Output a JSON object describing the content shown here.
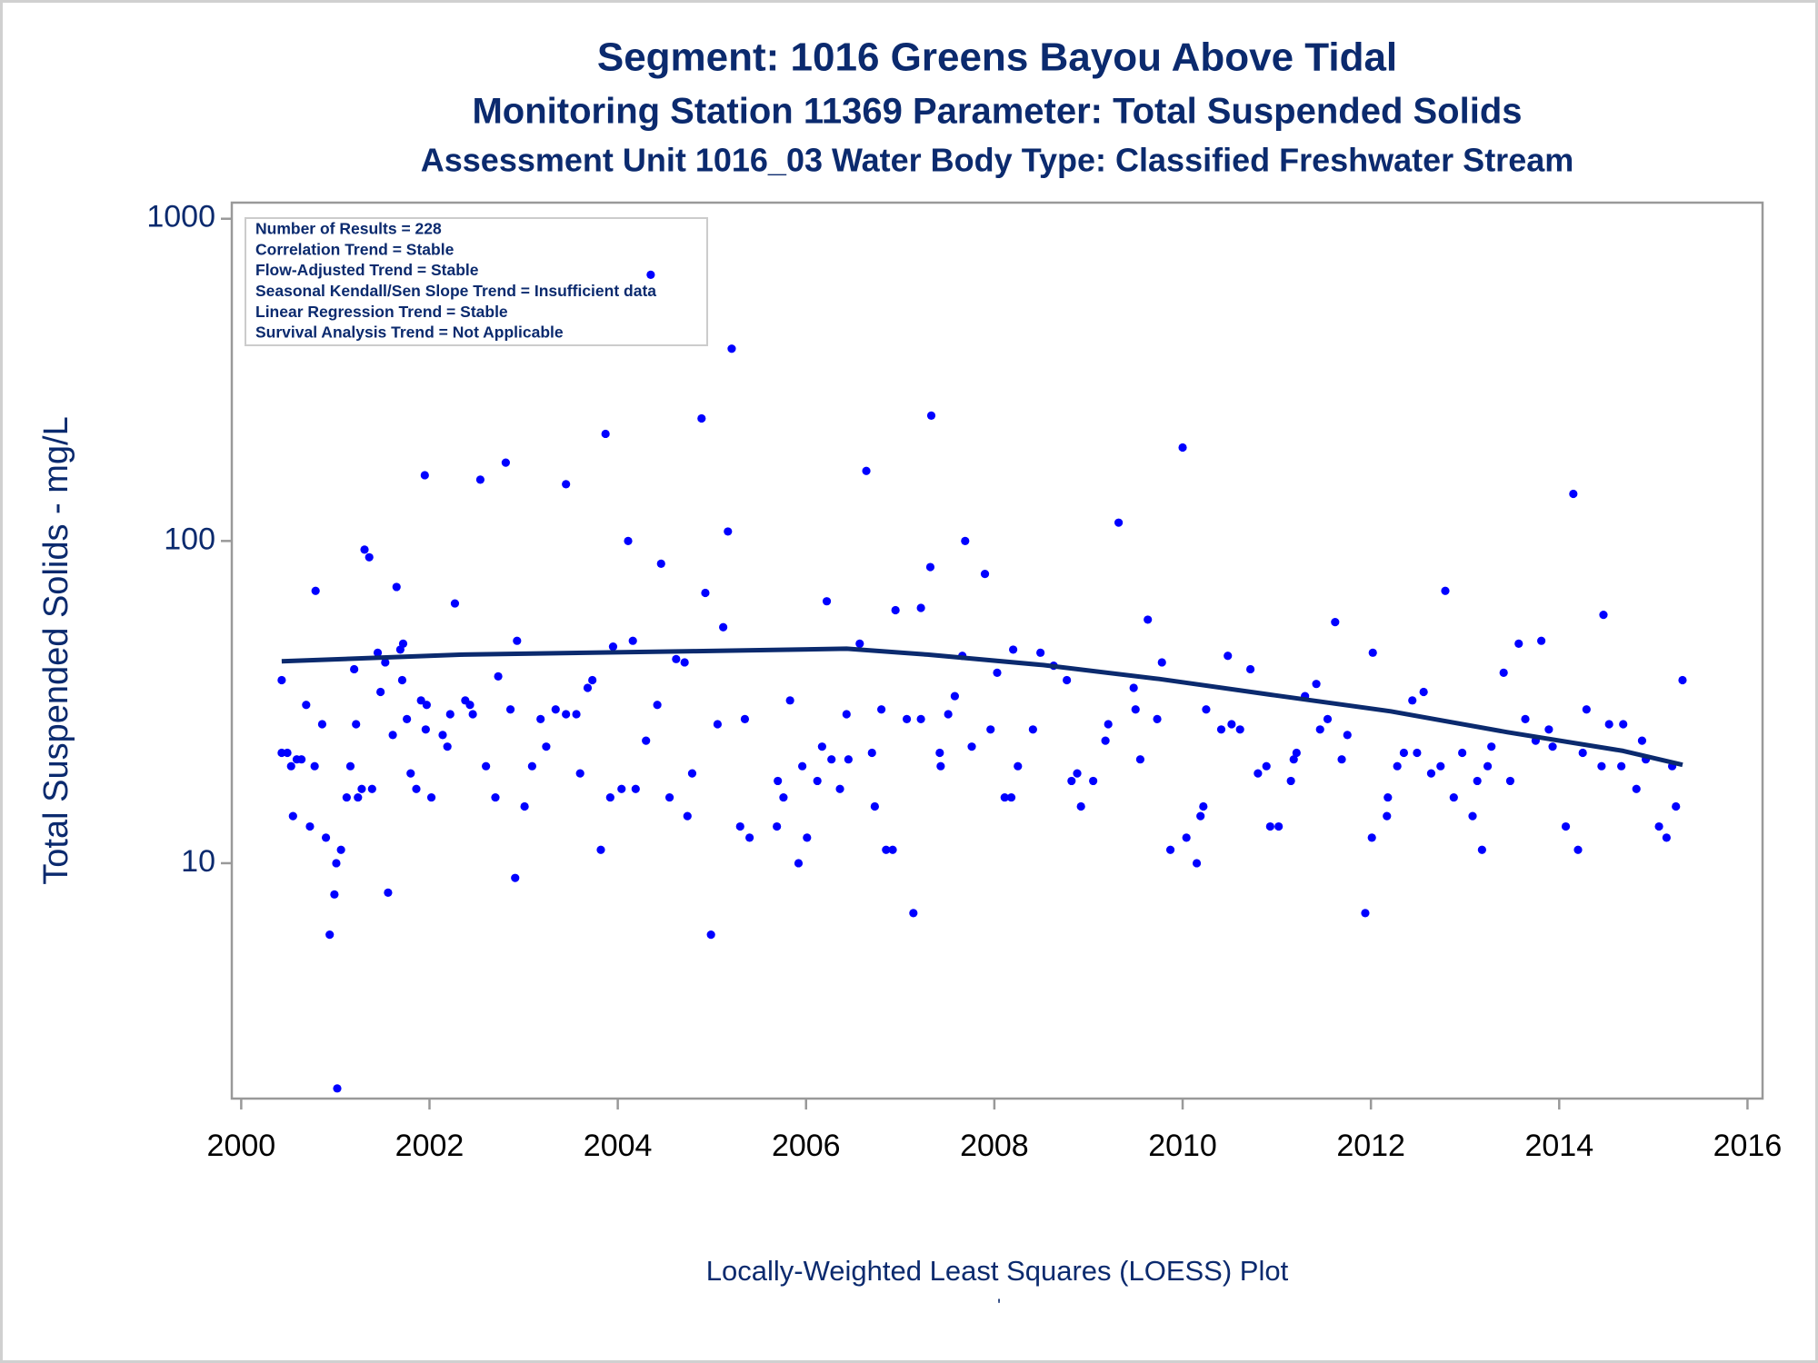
{
  "chart_data": {
    "type": "scatter",
    "title": "Segment: 1016  Greens Bayou Above Tidal",
    "subtitle": "Monitoring Station 11369 Parameter: Total Suspended Solids",
    "subtitle2": "Assessment Unit 1016_03   Water Body Type: Classified Freshwater Stream",
    "y_label": "Total Suspended Solids - mg/L",
    "footnote": "Locally-Weighted Least Squares (LOESS) Plot",
    "footnote2": "'",
    "annotations": [
      "Number of Results = 228",
      "Correlation Trend = Stable",
      "Flow-Adjusted Trend = Stable",
      "Seasonal Kendall/Sen Slope Trend = Insufficient data",
      "Linear Regression Trend = Stable",
      "Survival Analysis Trend = Not Applicable"
    ],
    "xlim": [
      1999.9,
      2016.16
    ],
    "xticks": [
      2000,
      2002,
      2004,
      2006,
      2008,
      2010,
      2012,
      2014,
      2016
    ],
    "ylim": [
      1.86,
      1122
    ],
    "yticks": [
      10,
      100,
      1000
    ],
    "ylog": true,
    "series": [
      {
        "type": "scatter",
        "color": "#0000ff",
        "x": [
          2000.43,
          2000.43,
          2000.49,
          2000.53,
          2000.55,
          2000.59,
          2000.64,
          2000.69,
          2000.73,
          2000.78,
          2000.79,
          2000.86,
          2000.9,
          2000.94,
          2000.99,
          2001.01,
          2001.06,
          2001.02,
          2001.12,
          2001.16,
          2001.2,
          2001.22,
          2001.24,
          2001.28,
          2001.31,
          2001.36,
          2001.39,
          2001.45,
          2001.48,
          2001.53,
          2001.56,
          2001.61,
          2001.65,
          2001.69,
          2001.72,
          2001.71,
          2001.76,
          2001.8,
          2001.86,
          2001.91,
          2001.95,
          2001.96,
          2001.97,
          2002.02,
          2002.14,
          2002.19,
          2002.22,
          2002.27,
          2002.38,
          2002.43,
          2002.46,
          2002.54,
          2002.6,
          2002.7,
          2002.73,
          2002.81,
          2002.86,
          2002.91,
          2002.93,
          2003.01,
          2003.09,
          2003.18,
          2003.24,
          2003.34,
          2003.45,
          2003.45,
          2003.56,
          2003.6,
          2003.68,
          2003.73,
          2003.82,
          2003.87,
          2003.92,
          2003.95,
          2004.04,
          2004.11,
          2004.16,
          2004.19,
          2004.3,
          2004.35,
          2004.42,
          2004.46,
          2004.55,
          2004.62,
          2004.71,
          2004.74,
          2004.79,
          2004.89,
          2004.93,
          2004.99,
          2005.06,
          2005.12,
          2005.17,
          2005.21,
          2005.3,
          2005.35,
          2005.4,
          2005.69,
          2005.7,
          2005.76,
          2005.83,
          2005.92,
          2005.96,
          2006.01,
          2006.12,
          2006.17,
          2006.22,
          2006.27,
          2006.36,
          2006.43,
          2006.45,
          2006.57,
          2006.64,
          2006.7,
          2006.73,
          2006.8,
          2006.85,
          2006.92,
          2006.95,
          2007.07,
          2007.14,
          2007.22,
          2007.22,
          2007.32,
          2007.33,
          2007.42,
          2007.43,
          2007.51,
          2007.58,
          2007.66,
          2007.69,
          2007.76,
          2007.9,
          2007.96,
          2008.03,
          2008.11,
          2008.18,
          2008.2,
          2008.25,
          2008.41,
          2008.49,
          2008.63,
          2008.77,
          2008.82,
          2008.88,
          2008.92,
          2009.05,
          2009.18,
          2009.21,
          2009.32,
          2009.48,
          2009.5,
          2009.55,
          2009.63,
          2009.73,
          2009.78,
          2009.87,
          2010.0,
          2010.04,
          2010.15,
          2010.19,
          2010.22,
          2010.25,
          2010.41,
          2010.48,
          2010.52,
          2010.61,
          2010.72,
          2010.8,
          2010.89,
          2010.93,
          2011.02,
          2011.15,
          2011.18,
          2011.21,
          2011.3,
          2011.42,
          2011.46,
          2011.54,
          2011.62,
          2011.69,
          2011.75,
          2011.94,
          2012.01,
          2012.02,
          2012.17,
          2012.18,
          2012.28,
          2012.35,
          2012.44,
          2012.49,
          2012.56,
          2012.64,
          2012.74,
          2012.79,
          2012.88,
          2012.97,
          2013.08,
          2013.13,
          2013.18,
          2013.24,
          2013.28,
          2013.41,
          2013.48,
          2013.57,
          2013.64,
          2013.75,
          2013.81,
          2013.89,
          2013.93,
          2014.07,
          2014.15,
          2014.2,
          2014.25,
          2014.29,
          2014.45,
          2014.47,
          2014.53,
          2014.66,
          2014.68,
          2014.82,
          2014.88,
          2014.92,
          2015.06,
          2015.14,
          2015.2,
          2015.24,
          2015.31
        ],
        "values": [
          37,
          22,
          22,
          20,
          14,
          21,
          21,
          31,
          13,
          20,
          70,
          27,
          12,
          6,
          8,
          10,
          11,
          2,
          16,
          20,
          40,
          27,
          16,
          17,
          94,
          89,
          17,
          45,
          34,
          42,
          8.1,
          25,
          72,
          46,
          48,
          37,
          28,
          19,
          17,
          32,
          160,
          26,
          31,
          16,
          25,
          23,
          29,
          64,
          32,
          31,
          29,
          155,
          20,
          16,
          38,
          175,
          30,
          9,
          49,
          15,
          20,
          28,
          23,
          30,
          150,
          29,
          29,
          19,
          35,
          37,
          11,
          215,
          16,
          47,
          17,
          100,
          49,
          17,
          24,
          670,
          31,
          85,
          16,
          43,
          42,
          14,
          19,
          240,
          69,
          6,
          27,
          54,
          107,
          395,
          13,
          28,
          12,
          13,
          18,
          16,
          32,
          10,
          20,
          12,
          18,
          23,
          65,
          21,
          17,
          29,
          21,
          48,
          165,
          22,
          15,
          30,
          11,
          11,
          61,
          28,
          7,
          62,
          28,
          83,
          245,
          22,
          20,
          29,
          33,
          44,
          100,
          23,
          79,
          26,
          39,
          16,
          16,
          46,
          20,
          26,
          45,
          41,
          37,
          18,
          19,
          15,
          18,
          24,
          27,
          114,
          35,
          30,
          21,
          57,
          28,
          42,
          11,
          195,
          12,
          10,
          14,
          15,
          30,
          26,
          44,
          27,
          26,
          40,
          19,
          20,
          13,
          13,
          18,
          21,
          22,
          33,
          36,
          26,
          28,
          56,
          21,
          25,
          7,
          12,
          45,
          14,
          16,
          20,
          22,
          32,
          22,
          34,
          19,
          20,
          70,
          16,
          22,
          14,
          18,
          11,
          20,
          23,
          39,
          18,
          48,
          28,
          24,
          49,
          26,
          23,
          13,
          140,
          11,
          22,
          30,
          20,
          59,
          27,
          20,
          27,
          17,
          24,
          21,
          13,
          12,
          20,
          15,
          37
        ]
      },
      {
        "type": "line",
        "color": "#0b2a6e",
        "x": [
          2000.43,
          2002.36,
          2004.83,
          2006.43,
          2007.29,
          2008.52,
          2009.75,
          2010.98,
          2012.21,
          2013.45,
          2014.68,
          2015.31
        ],
        "values": [
          42.3,
          44.4,
          45.5,
          46.3,
          44.4,
          41.2,
          37.3,
          33.2,
          29.6,
          25.5,
          22.3,
          20.2
        ]
      }
    ]
  }
}
